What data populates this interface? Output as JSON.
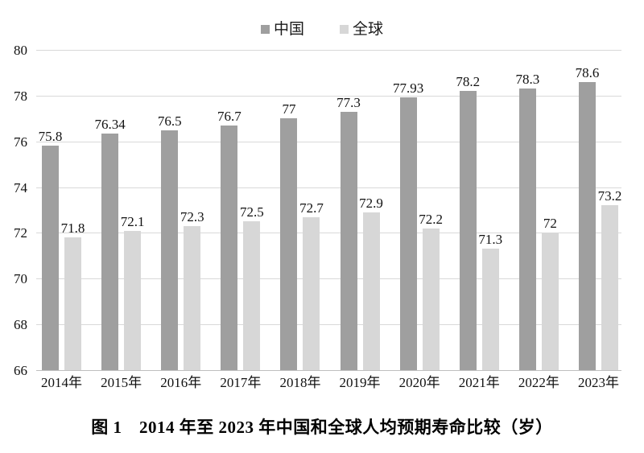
{
  "legend": {
    "items": [
      {
        "label": "中国",
        "color": "#9f9f9f"
      },
      {
        "label": "全球",
        "color": "#d7d7d7"
      }
    ]
  },
  "chart_data": {
    "type": "bar",
    "categories": [
      "2014年",
      "2015年",
      "2016年",
      "2017年",
      "2018年",
      "2019年",
      "2020年",
      "2021年",
      "2022年",
      "2023年"
    ],
    "series": [
      {
        "name": "中国",
        "color": "#9f9f9f",
        "values": [
          75.8,
          76.34,
          76.5,
          76.7,
          77,
          77.3,
          77.93,
          78.2,
          78.3,
          78.6
        ],
        "labels": [
          "75.8",
          "76.34",
          "76.5",
          "76.7",
          "77",
          "77.3",
          "77.93",
          "78.2",
          "78.3",
          "78.6"
        ]
      },
      {
        "name": "全球",
        "color": "#d7d7d7",
        "values": [
          71.8,
          72.1,
          72.3,
          72.5,
          72.7,
          72.9,
          72.2,
          71.3,
          72,
          73.2
        ],
        "labels": [
          "71.8",
          "72.1",
          "72.3",
          "72.5",
          "72.7",
          "72.9",
          "72.2",
          "71.3",
          "72",
          "73.2"
        ]
      }
    ],
    "title": "",
    "xlabel": "",
    "ylabel": "",
    "ylim": [
      66,
      80
    ],
    "yticks": [
      66,
      68,
      70,
      72,
      74,
      76,
      78,
      80
    ],
    "grid": true,
    "legend_position": "top",
    "grid_color": "#d9d9d9",
    "baseline_color": "#bfbfbf"
  },
  "caption": "图 1　2014 年至 2023 年中国和全球人均预期寿命比较（岁）"
}
